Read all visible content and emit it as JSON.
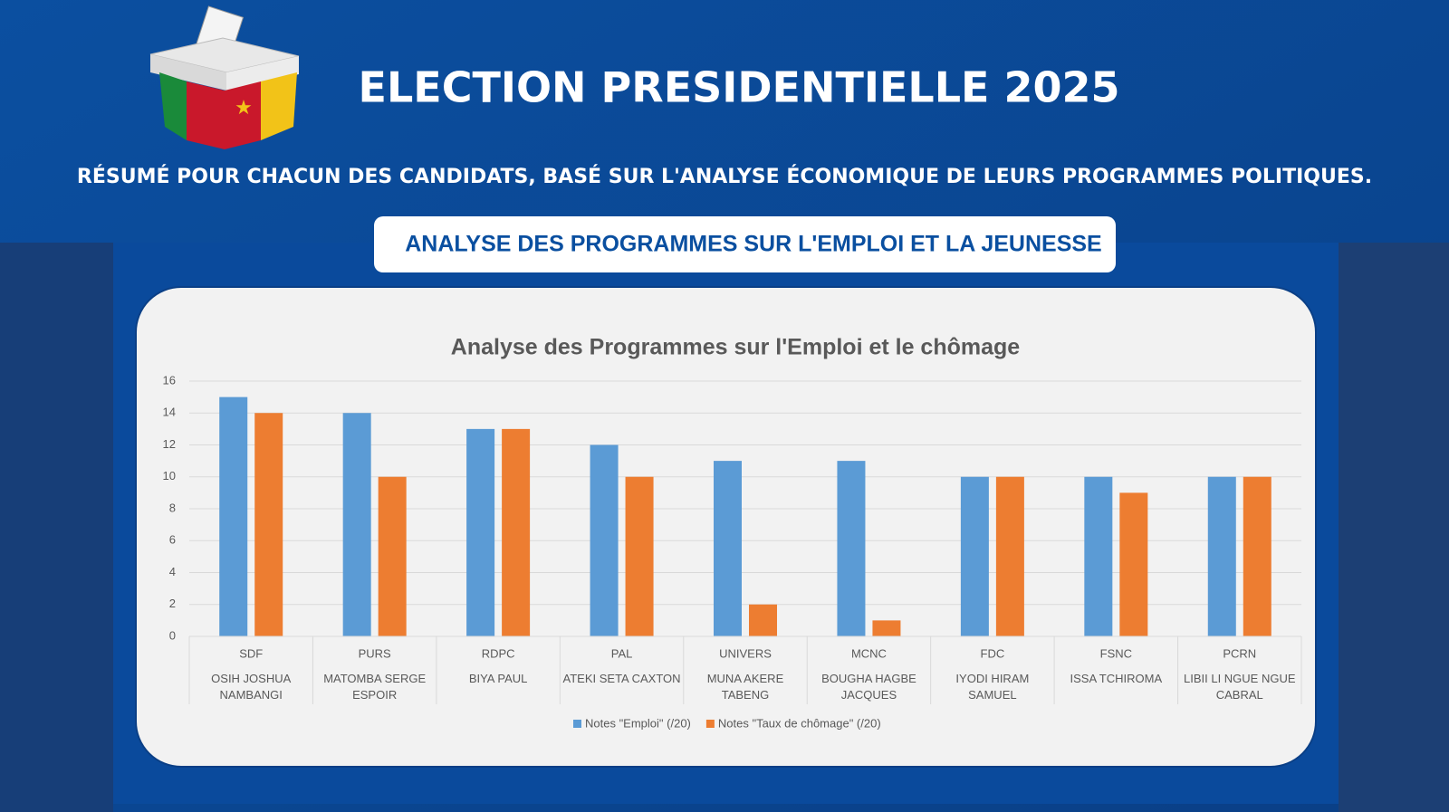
{
  "header": {
    "title": "ELECTION PRESIDENTIELLE 2025",
    "subtitle": "RÉSUMÉ POUR CHACUN DES CANDIDATS, BASÉ SUR L'ANALYSE ÉCONOMIQUE DE LEURS PROGRAMMES POLITIQUES.",
    "section": "ANALYSE DES PROGRAMMES SUR L'EMPLOI ET LA JEUNESSE"
  },
  "chart_data": {
    "type": "bar",
    "title": "Analyse des Programmes sur l'Emploi et le chômage",
    "categories": [
      "SDF",
      "PURS",
      "RDPC",
      "PAL",
      "UNIVERS",
      "MCNC",
      "FDC",
      "FSNC",
      "PCRN"
    ],
    "candidates": [
      "OSIH JOSHUA NAMBANGI",
      "MATOMBA SERGE ESPOIR",
      "BIYA PAUL",
      "ATEKI SETA CAXTON",
      "MUNA AKERE TABENG",
      "BOUGHA HAGBE JACQUES",
      "IYODI HIRAM SAMUEL",
      "ISSA TCHIROMA",
      "LIBII LI NGUE NGUE CABRAL"
    ],
    "series": [
      {
        "name": "Notes \"Emploi\" (/20)",
        "color": "#5b9bd5",
        "values": [
          15,
          14,
          13,
          12,
          11,
          11,
          10,
          10,
          10
        ]
      },
      {
        "name": "Notes \"Taux de chômage\" (/20)",
        "color": "#ed7d31",
        "values": [
          14,
          10,
          13,
          10,
          2,
          1,
          10,
          9,
          10
        ]
      }
    ],
    "ylim": [
      0,
      16
    ],
    "yticks": [
      0,
      2,
      4,
      6,
      8,
      10,
      12,
      14,
      16
    ],
    "grid": true,
    "legend": "bottom"
  }
}
